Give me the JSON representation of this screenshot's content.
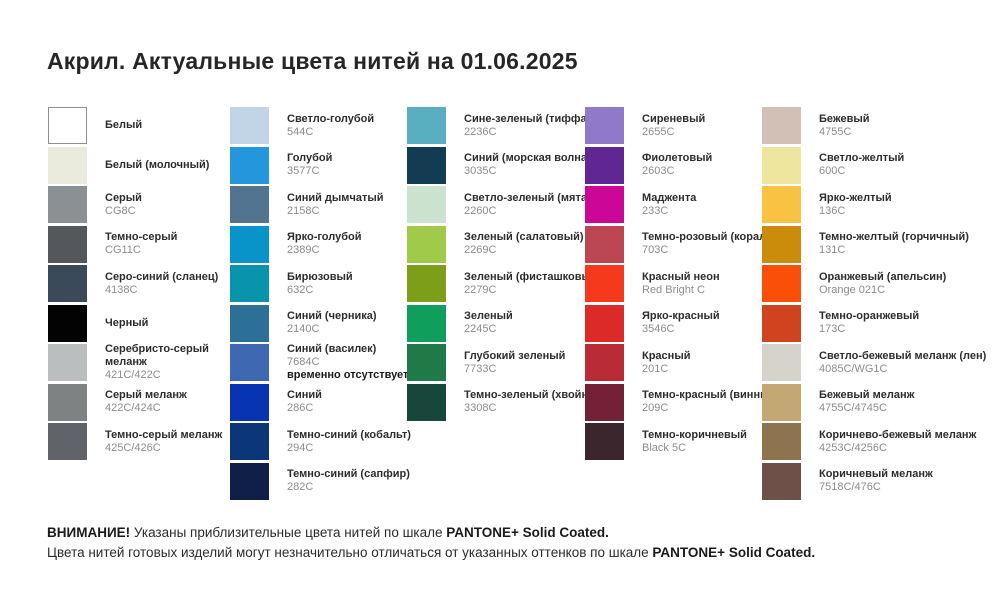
{
  "title": "Акрил. Актуальные цвета нитей на 01.06.2025",
  "columns": [
    {
      "items": [
        {
          "name": "Белый",
          "hex": "#ffffff",
          "border": true
        },
        {
          "name": "Белый (молочный)",
          "hex": "#eaebdd"
        },
        {
          "name": "Серый",
          "code": "CG8C",
          "hex": "#8b9094"
        },
        {
          "name": "Темно-серый",
          "code": "CG11C",
          "hex": "#54585d"
        },
        {
          "name": "Серо-синий (сланец)",
          "code": "4138C",
          "hex": "#3b4a58"
        },
        {
          "name": "Черный",
          "hex": "#030303"
        },
        {
          "name": "Серебристо-серый\nмеланж",
          "code": "421C/422C",
          "hex": "#babebf"
        },
        {
          "name": "Серый меланж",
          "code": "422C/424C",
          "hex": "#7e8283"
        },
        {
          "name": "Темно-серый меланж",
          "code": "425C/426C",
          "hex": "#60646a"
        }
      ]
    },
    {
      "items": [
        {
          "name": "Светло-голубой",
          "code": "544C",
          "hex": "#c2d5e6"
        },
        {
          "name": "Голубой",
          "code": "3577C",
          "hex": "#2396dc"
        },
        {
          "name": "Синий дымчатый",
          "code": "2158C",
          "hex": "#52748e"
        },
        {
          "name": "Ярко-голубой",
          "code": "2389C",
          "hex": "#0894c8"
        },
        {
          "name": "Бирюзовый",
          "code": "632C",
          "hex": "#0a93ac"
        },
        {
          "name": "Синий (черника)",
          "code": "2140C",
          "hex": "#2c7097"
        },
        {
          "name": "Синий (василек)",
          "code": "7684C",
          "note": "временно отсутствует",
          "hex": "#3e68b1"
        },
        {
          "name": "Синий",
          "code": "286C",
          "hex": "#0834b2"
        },
        {
          "name": "Темно-синий (кобальт)",
          "code": "294C",
          "hex": "#0b3678"
        },
        {
          "name": "Темно-синий (сапфир)",
          "code": "282C",
          "hex": "#101f48"
        }
      ]
    },
    {
      "items": [
        {
          "name": "Сине-зеленый (тиффани)",
          "code": "2236C",
          "hex": "#59afc0"
        },
        {
          "name": "Синий (морская волна)",
          "code": "3035C",
          "hex": "#123c52"
        },
        {
          "name": "Светло-зеленый (мята)",
          "code": "2260C",
          "hex": "#cbe2ce"
        },
        {
          "name": "Зеленый (салатовый)",
          "code": "2269C",
          "hex": "#a0ca4a"
        },
        {
          "name": "Зеленый (фисташковый)",
          "code": "2279C",
          "hex": "#7c9e18"
        },
        {
          "name": "Зеленый",
          "code": "2245C",
          "hex": "#0f9e5b"
        },
        {
          "name": "Глубокий зеленый",
          "code": "7733C",
          "hex": "#1f7a48"
        },
        {
          "name": "Темно-зеленый (хвойный)",
          "code": "3308C",
          "hex": "#17473a"
        }
      ]
    },
    {
      "items": [
        {
          "name": "Сиреневый",
          "code": "2655C",
          "hex": "#8f7ac9"
        },
        {
          "name": "Фиолетовый",
          "code": "2603C",
          "hex": "#5f2694"
        },
        {
          "name": "Маджента",
          "code": "233C",
          "hex": "#cc0797"
        },
        {
          "name": "Темно-розовый (коралл)",
          "code": "703C",
          "hex": "#bc4753"
        },
        {
          "name": "Красный неон",
          "code": "Red Bright C",
          "hex": "#f4391c"
        },
        {
          "name": "Ярко-красный",
          "code": "3546C",
          "hex": "#dc2a28"
        },
        {
          "name": "Красный",
          "code": "201C",
          "hex": "#b92b37"
        },
        {
          "name": "Темно-красный (винный)",
          "code": "209C",
          "hex": "#742138"
        },
        {
          "name": "Темно-коричневый",
          "code": "Black 5C",
          "hex": "#3a262c"
        }
      ]
    },
    {
      "items": [
        {
          "name": "Бежевый",
          "code": "4755C",
          "hex": "#d2bfb6"
        },
        {
          "name": "Светло-желтый",
          "code": "600C",
          "hex": "#eee59f"
        },
        {
          "name": "Ярко-желтый",
          "code": "136C",
          "hex": "#f9c243"
        },
        {
          "name": "Темно-желтый (горчичный)",
          "code": "131C",
          "hex": "#cb8c0b"
        },
        {
          "name": "Оранжевый (апельсин)",
          "code": "Orange 021C",
          "hex": "#f94f08"
        },
        {
          "name": "Темно-оранжевый",
          "code": "173C",
          "hex": "#d0431f"
        },
        {
          "name": "Светло-бежевый меланж (лен)",
          "code": "4085C/WG1C",
          "hex": "#d6d3cb"
        },
        {
          "name": "Бежевый меланж",
          "code": "4755C/4745C",
          "hex": "#c3a874"
        },
        {
          "name": "Коричнево-бежевый меланж",
          "code": "4253C/4256C",
          "hex": "#8d734e"
        },
        {
          "name": "Коричневый меланж",
          "code": "7518C/476C",
          "hex": "#6f5048"
        }
      ]
    }
  ],
  "footer": {
    "line1_emphasis": "ВНИМАНИЕ!",
    "line1_text": " Указаны приблизительные цвета нитей по шкале ",
    "line1_brand": "PANTONE+ Solid Coated.",
    "line2_text": "Цвета нитей готовых изделий могут незначительно отличаться от указанных оттенков по шкале ",
    "line2_brand": "PANTONE+ Solid Coated."
  }
}
